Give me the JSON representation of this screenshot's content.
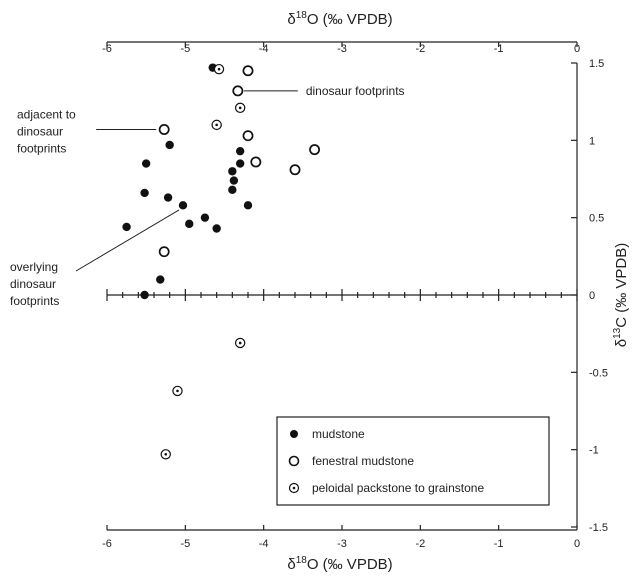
{
  "chart_data": {
    "type": "scatter",
    "title": "",
    "xlabel_top": {
      "prefix": "δ",
      "sup": "18",
      "suffix": "O (‰ VPDB)"
    },
    "xlabel_bottom": {
      "prefix": "δ",
      "sup": "18",
      "suffix": "O (‰ VPDB)"
    },
    "ylabel": {
      "prefix": "δ",
      "sup": "13",
      "suffix": "C (‰ VPDB)"
    },
    "xlim": [
      -6,
      0
    ],
    "ylim": [
      -1.5,
      1.5
    ],
    "xticks": [
      -6,
      -5,
      -4,
      -3,
      -2,
      -1,
      0
    ],
    "xtick_labels": [
      "-6",
      "-5",
      "-4",
      "-3",
      "-2",
      "-1",
      "0"
    ],
    "yticks": [
      -1.5,
      -1,
      -0.5,
      0,
      0.5,
      1,
      1.5
    ],
    "ytick_labels": [
      "-1.5",
      "-1",
      "-0.5",
      "0",
      "0.5",
      "1",
      "1.5"
    ],
    "legend_position": "bottom-right",
    "series": [
      {
        "name": "mudstone",
        "marker": "filled-circle",
        "points": [
          {
            "x": -4.65,
            "y": 1.47
          },
          {
            "x": -5.2,
            "y": 0.97
          },
          {
            "x": -5.5,
            "y": 0.85
          },
          {
            "x": -4.3,
            "y": 0.93
          },
          {
            "x": -4.3,
            "y": 0.85
          },
          {
            "x": -4.4,
            "y": 0.8
          },
          {
            "x": -4.38,
            "y": 0.74
          },
          {
            "x": -4.4,
            "y": 0.68
          },
          {
            "x": -5.52,
            "y": 0.66
          },
          {
            "x": -5.22,
            "y": 0.63
          },
          {
            "x": -5.03,
            "y": 0.58
          },
          {
            "x": -4.2,
            "y": 0.58
          },
          {
            "x": -4.75,
            "y": 0.5
          },
          {
            "x": -4.95,
            "y": 0.46
          },
          {
            "x": -5.75,
            "y": 0.44
          },
          {
            "x": -4.6,
            "y": 0.43
          },
          {
            "x": -5.32,
            "y": 0.1
          },
          {
            "x": -5.52,
            "y": 0.0
          }
        ]
      },
      {
        "name": "fenestral mudstone",
        "marker": "open-circle",
        "points": [
          {
            "x": -4.2,
            "y": 1.45
          },
          {
            "x": -4.33,
            "y": 1.32
          },
          {
            "x": -5.27,
            "y": 1.07
          },
          {
            "x": -4.2,
            "y": 1.03
          },
          {
            "x": -3.35,
            "y": 0.94
          },
          {
            "x": -4.1,
            "y": 0.86
          },
          {
            "x": -3.6,
            "y": 0.81
          },
          {
            "x": -5.27,
            "y": 0.28
          }
        ]
      },
      {
        "name": "peloidal packstone to grainstone",
        "marker": "dotted-circle",
        "points": [
          {
            "x": -4.57,
            "y": 1.46
          },
          {
            "x": -4.3,
            "y": 1.21
          },
          {
            "x": -4.6,
            "y": 1.1
          },
          {
            "x": -4.3,
            "y": -0.31
          },
          {
            "x": -5.1,
            "y": -0.62
          },
          {
            "x": -5.25,
            "y": -1.03
          }
        ]
      }
    ],
    "annotations": [
      {
        "id": "dino",
        "lines": [
          "dinosaur footprints"
        ],
        "point": {
          "x": -4.33,
          "y": 1.32
        }
      },
      {
        "id": "adjacent",
        "lines": [
          "adjacent to",
          "dinosaur",
          "footprints"
        ],
        "point": {
          "x": -5.27,
          "y": 1.07
        }
      },
      {
        "id": "overlying",
        "lines": [
          "overlying",
          "dinosaur",
          "footprints"
        ],
        "point": {
          "x": -5.08,
          "y": 0.55
        }
      }
    ]
  }
}
